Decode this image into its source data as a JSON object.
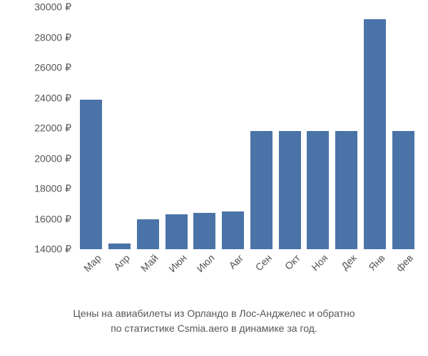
{
  "chart": {
    "type": "bar",
    "categories": [
      "Мар",
      "Апр",
      "Май",
      "Июн",
      "Июл",
      "Авг",
      "Сен",
      "Окт",
      "Ноя",
      "Дек",
      "Янв",
      "фев"
    ],
    "values": [
      23900,
      14400,
      16000,
      16300,
      16400,
      16500,
      21800,
      21800,
      21800,
      21800,
      29200,
      21800
    ],
    "bar_color": "#4a74a8",
    "background_color": "#ffffff",
    "ylim_min": 14000,
    "ylim_max": 30000,
    "ytick_step": 2000,
    "yticks": [
      14000,
      16000,
      18000,
      20000,
      22000,
      24000,
      26000,
      28000,
      30000
    ],
    "ytick_labels": [
      "14000 ₽",
      "16000 ₽",
      "18000 ₽",
      "20000 ₽",
      "22000 ₽",
      "24000 ₽",
      "26000 ₽",
      "28000 ₽",
      "30000 ₽"
    ],
    "currency_suffix": " ₽",
    "axis_label_color": "#555555",
    "axis_label_fontsize": 14,
    "bar_width_ratio": 0.78,
    "x_label_rotation_deg": -45
  },
  "caption": {
    "line1": "Цены на авиабилеты из Орландо в Лос-Анджелес и обратно",
    "line2": "по статистике Csmia.aero в динамике за год.",
    "color": "#555555",
    "fontsize": 14
  }
}
